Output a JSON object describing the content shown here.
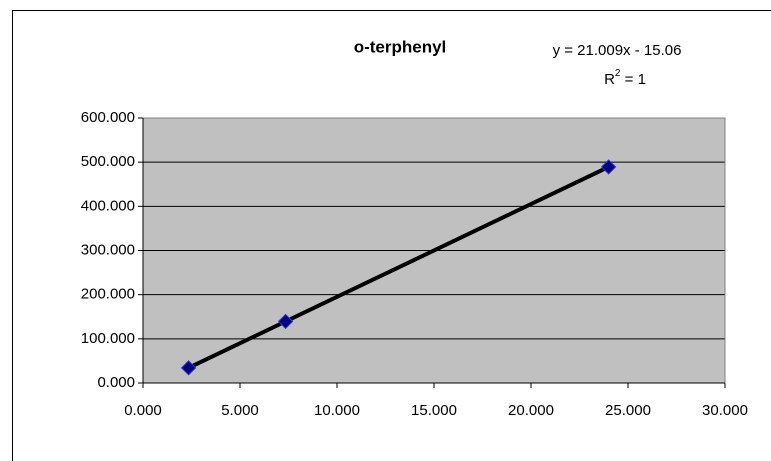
{
  "chart_data": {
    "type": "scatter",
    "title": "o-terphenyl",
    "annotations": {
      "equation": "y = 21.009x - 15.06",
      "r2_base": "R",
      "r2_sup": "2",
      "r2_rest": " = 1"
    },
    "series": [
      {
        "name": "o-terphenyl",
        "color": "#000080",
        "x": [
          2.35,
          7.35,
          24.0
        ],
        "values": [
          34.3,
          139.4,
          489.2
        ]
      }
    ],
    "trendline": {
      "slope": 21.009,
      "intercept": -15.06,
      "color": "#000000"
    },
    "xlim": [
      0,
      30
    ],
    "xticks": [
      {
        "value": 0,
        "label": "0.000"
      },
      {
        "value": 5,
        "label": "5.000"
      },
      {
        "value": 10,
        "label": "10.000"
      },
      {
        "value": 15,
        "label": "15.000"
      },
      {
        "value": 20,
        "label": "20.000"
      },
      {
        "value": 25,
        "label": "25.000"
      },
      {
        "value": 30,
        "label": "30.000"
      }
    ],
    "ylim": [
      0,
      600
    ],
    "yticks": [
      {
        "value": 0,
        "label": "0.000"
      },
      {
        "value": 100,
        "label": "100.000"
      },
      {
        "value": 200,
        "label": "200.000"
      },
      {
        "value": 300,
        "label": "300.000"
      },
      {
        "value": 400,
        "label": "400.000"
      },
      {
        "value": 500,
        "label": "500.000"
      },
      {
        "value": 600,
        "label": "600.000"
      }
    ],
    "grid": true,
    "plot_background": "#c0c0c0"
  }
}
